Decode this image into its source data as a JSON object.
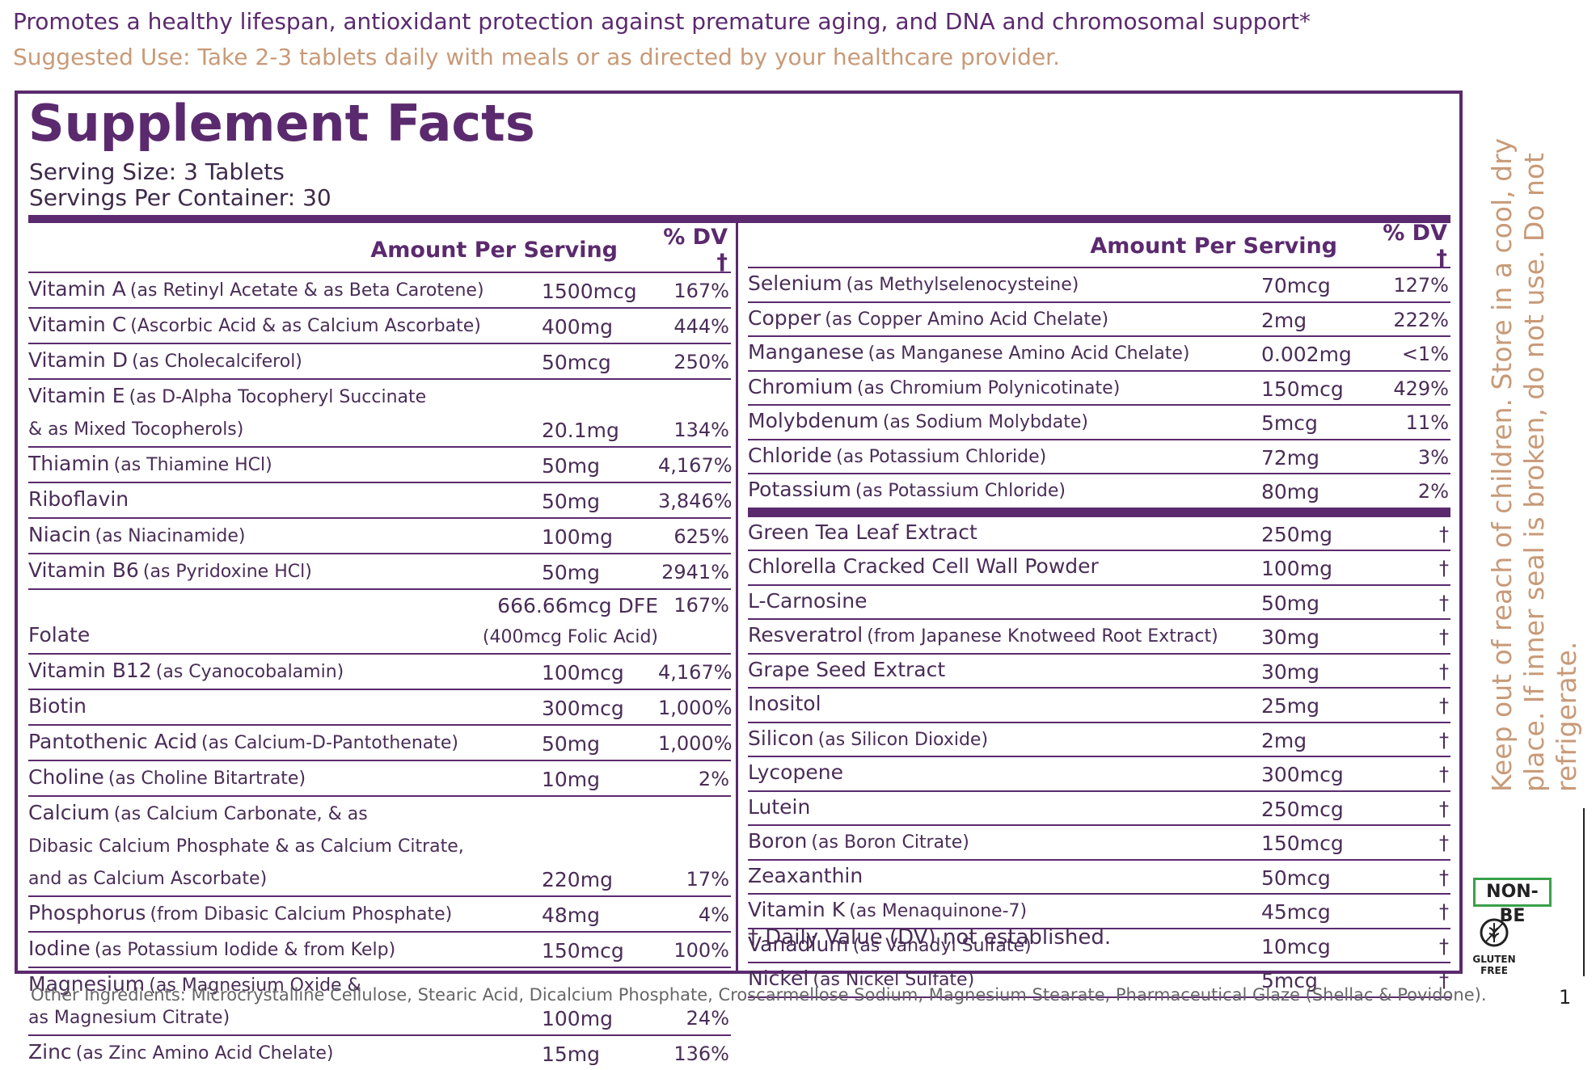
{
  "header": {
    "tagline": "Promotes a healthy lifespan, antioxidant protection against premature aging, and DNA and chromosomal support*",
    "suggested_use": "Suggested Use: Take 2-3 tablets daily with meals or as directed by your healthcare provider."
  },
  "facts": {
    "title": "Supplement Facts",
    "serving_size": "Serving Size: 3 Tablets",
    "servings_per_container": "Servings Per Container: 30",
    "columns": [
      {
        "amount_header": "Amount Per Serving",
        "dv_header": "% DV †",
        "groups": [
          [
            {
              "name": "Vitamin A",
              "detail": [
                "(as Retinyl Acetate & as Beta Carotene)"
              ],
              "amount": "1500mcg",
              "dv": "167%"
            },
            {
              "name": "Vitamin C",
              "detail": [
                "(Ascorbic Acid & as Calcium Ascorbate)"
              ],
              "amount": "400mg",
              "dv": "444%"
            },
            {
              "name": "Vitamin D",
              "detail": [
                "(as Cholecalciferol)"
              ],
              "amount": "50mcg",
              "dv": "250%"
            },
            {
              "name": "Vitamin E",
              "detail": [
                "(as D-Alpha Tocopheryl Succinate",
                "& as Mixed Tocopherols)"
              ],
              "amount": "20.1mg",
              "dv": "134%"
            },
            {
              "name": "Thiamin",
              "detail": [
                "(as Thiamine HCl)"
              ],
              "amount": "50mg",
              "dv": "4,167%"
            },
            {
              "name": "Riboflavin",
              "amount": "50mg",
              "dv": "3,846%"
            },
            {
              "name": "Niacin",
              "detail": [
                "(as Niacinamide)"
              ],
              "amount": "100mg",
              "dv": "625%"
            },
            {
              "name": "Vitamin B6",
              "detail": [
                "(as Pyridoxine HCl)"
              ],
              "amount": "50mg",
              "dv": "2941%"
            },
            {
              "name": "Folate",
              "amount": "666.66mcg DFE",
              "amount_note": "(400mcg Folic Acid)",
              "dv": "167%"
            },
            {
              "name": "Vitamin B12",
              "detail": [
                "(as Cyanocobalamin)"
              ],
              "amount": "100mcg",
              "dv": "4,167%"
            },
            {
              "name": "Biotin",
              "amount": "300mcg",
              "dv": "1,000%"
            },
            {
              "name": "Pantothenic Acid",
              "detail": [
                "(as Calcium-D-Pantothenate)"
              ],
              "amount": "50mg",
              "dv": "1,000%"
            },
            {
              "name": "Choline",
              "detail": [
                "(as Choline Bitartrate)"
              ],
              "amount": "10mg",
              "dv": "2%"
            },
            {
              "name": "Calcium",
              "detail": [
                "(as Calcium Carbonate, & as",
                "Dibasic Calcium Phosphate & as Calcium Citrate,",
                "and as Calcium Ascorbate)"
              ],
              "amount": "220mg",
              "dv": "17%"
            },
            {
              "name": "Phosphorus",
              "detail": [
                "(from Dibasic Calcium Phosphate)"
              ],
              "amount": "48mg",
              "dv": "4%"
            },
            {
              "name": "Iodine",
              "detail": [
                "(as Potassium Iodide & from Kelp)"
              ],
              "amount": "150mcg",
              "dv": "100%"
            },
            {
              "name": "Magnesium",
              "detail": [
                "(as Magnesium Oxide &",
                "as Magnesium Citrate)"
              ],
              "amount": "100mg",
              "dv": "24%"
            },
            {
              "name": "Zinc",
              "detail": [
                "(as Zinc Amino Acid Chelate)"
              ],
              "amount": "15mg",
              "dv": "136%"
            }
          ]
        ]
      },
      {
        "amount_header": "Amount Per Serving",
        "dv_header": "% DV †",
        "groups": [
          [
            {
              "name": "Selenium",
              "detail": [
                "(as Methylselenocysteine)"
              ],
              "amount": "70mcg",
              "dv": "127%"
            },
            {
              "name": "Copper",
              "detail": [
                "(as Copper Amino Acid Chelate)"
              ],
              "amount": "2mg",
              "dv": "222%"
            },
            {
              "name": "Manganese",
              "detail": [
                "(as Manganese Amino Acid Chelate)"
              ],
              "amount": "0.002mg",
              "dv": "<1%"
            },
            {
              "name": "Chromium",
              "detail": [
                "(as Chromium Polynicotinate)"
              ],
              "amount": "150mcg",
              "dv": "429%"
            },
            {
              "name": "Molybdenum",
              "detail": [
                "(as Sodium Molybdate)"
              ],
              "amount": "5mcg",
              "dv": "11%"
            },
            {
              "name": "Chloride",
              "detail": [
                "(as Potassium Chloride)"
              ],
              "amount": "72mg",
              "dv": "3%"
            },
            {
              "name": "Potassium",
              "detail": [
                "(as Potassium Chloride)"
              ],
              "amount": "80mg",
              "dv": "2%"
            }
          ],
          [
            {
              "name": "Green Tea Leaf Extract",
              "amount": "250mg",
              "dv": "†"
            },
            {
              "name": "Chlorella Cracked Cell Wall Powder",
              "amount": "100mg",
              "dv": "†"
            },
            {
              "name": "L-Carnosine",
              "amount": "50mg",
              "dv": "†"
            },
            {
              "name": "Resveratrol",
              "detail": [
                "(from Japanese Knotweed Root Extract)"
              ],
              "amount": "30mg",
              "dv": "†"
            },
            {
              "name": "Grape Seed Extract",
              "amount": "30mg",
              "dv": "†"
            },
            {
              "name": "Inositol",
              "amount": "25mg",
              "dv": "†"
            },
            {
              "name": "Silicon",
              "detail": [
                "(as Silicon Dioxide)"
              ],
              "amount": "2mg",
              "dv": "†"
            },
            {
              "name": "Lycopene",
              "amount": "300mcg",
              "dv": "†"
            },
            {
              "name": "Lutein",
              "amount": "250mcg",
              "dv": "†"
            },
            {
              "name": "Boron",
              "detail": [
                "(as Boron Citrate)"
              ],
              "amount": "150mcg",
              "dv": "†"
            },
            {
              "name": "Zeaxanthin",
              "amount": "50mcg",
              "dv": "†"
            },
            {
              "name": "Vitamin K",
              "detail": [
                "(as Menaquinone-7)"
              ],
              "amount": "45mcg",
              "dv": "†"
            },
            {
              "name": "Vanadium",
              "detail": [
                "(as Vanadyl Sulfate)"
              ],
              "amount": "10mcg",
              "dv": "†"
            },
            {
              "name": "Nickel",
              "detail": [
                "(as Nickel Sulfate)"
              ],
              "amount": "5mcg",
              "dv": "†"
            }
          ]
        ]
      }
    ],
    "footnote": "† Daily Value (DV) not established."
  },
  "side_note": {
    "lines": [
      "Keep out of reach of children. Store in a cool, dry",
      "place. If inner seal is broken, do not use. Do not",
      "refrigerate."
    ]
  },
  "badges": {
    "non_be": "NON-BE",
    "gluten_free": "GLUTEN FREE"
  },
  "page_number": "1",
  "other_ingredients": "Other Ingredients: Microcrystalline Cellulose, Stearic Acid, Dicalcium Phosphate, Croscarmellose Sodium, Magnesium Stearate, Pharmaceutical Glaze (Shellac & Povidone)."
}
